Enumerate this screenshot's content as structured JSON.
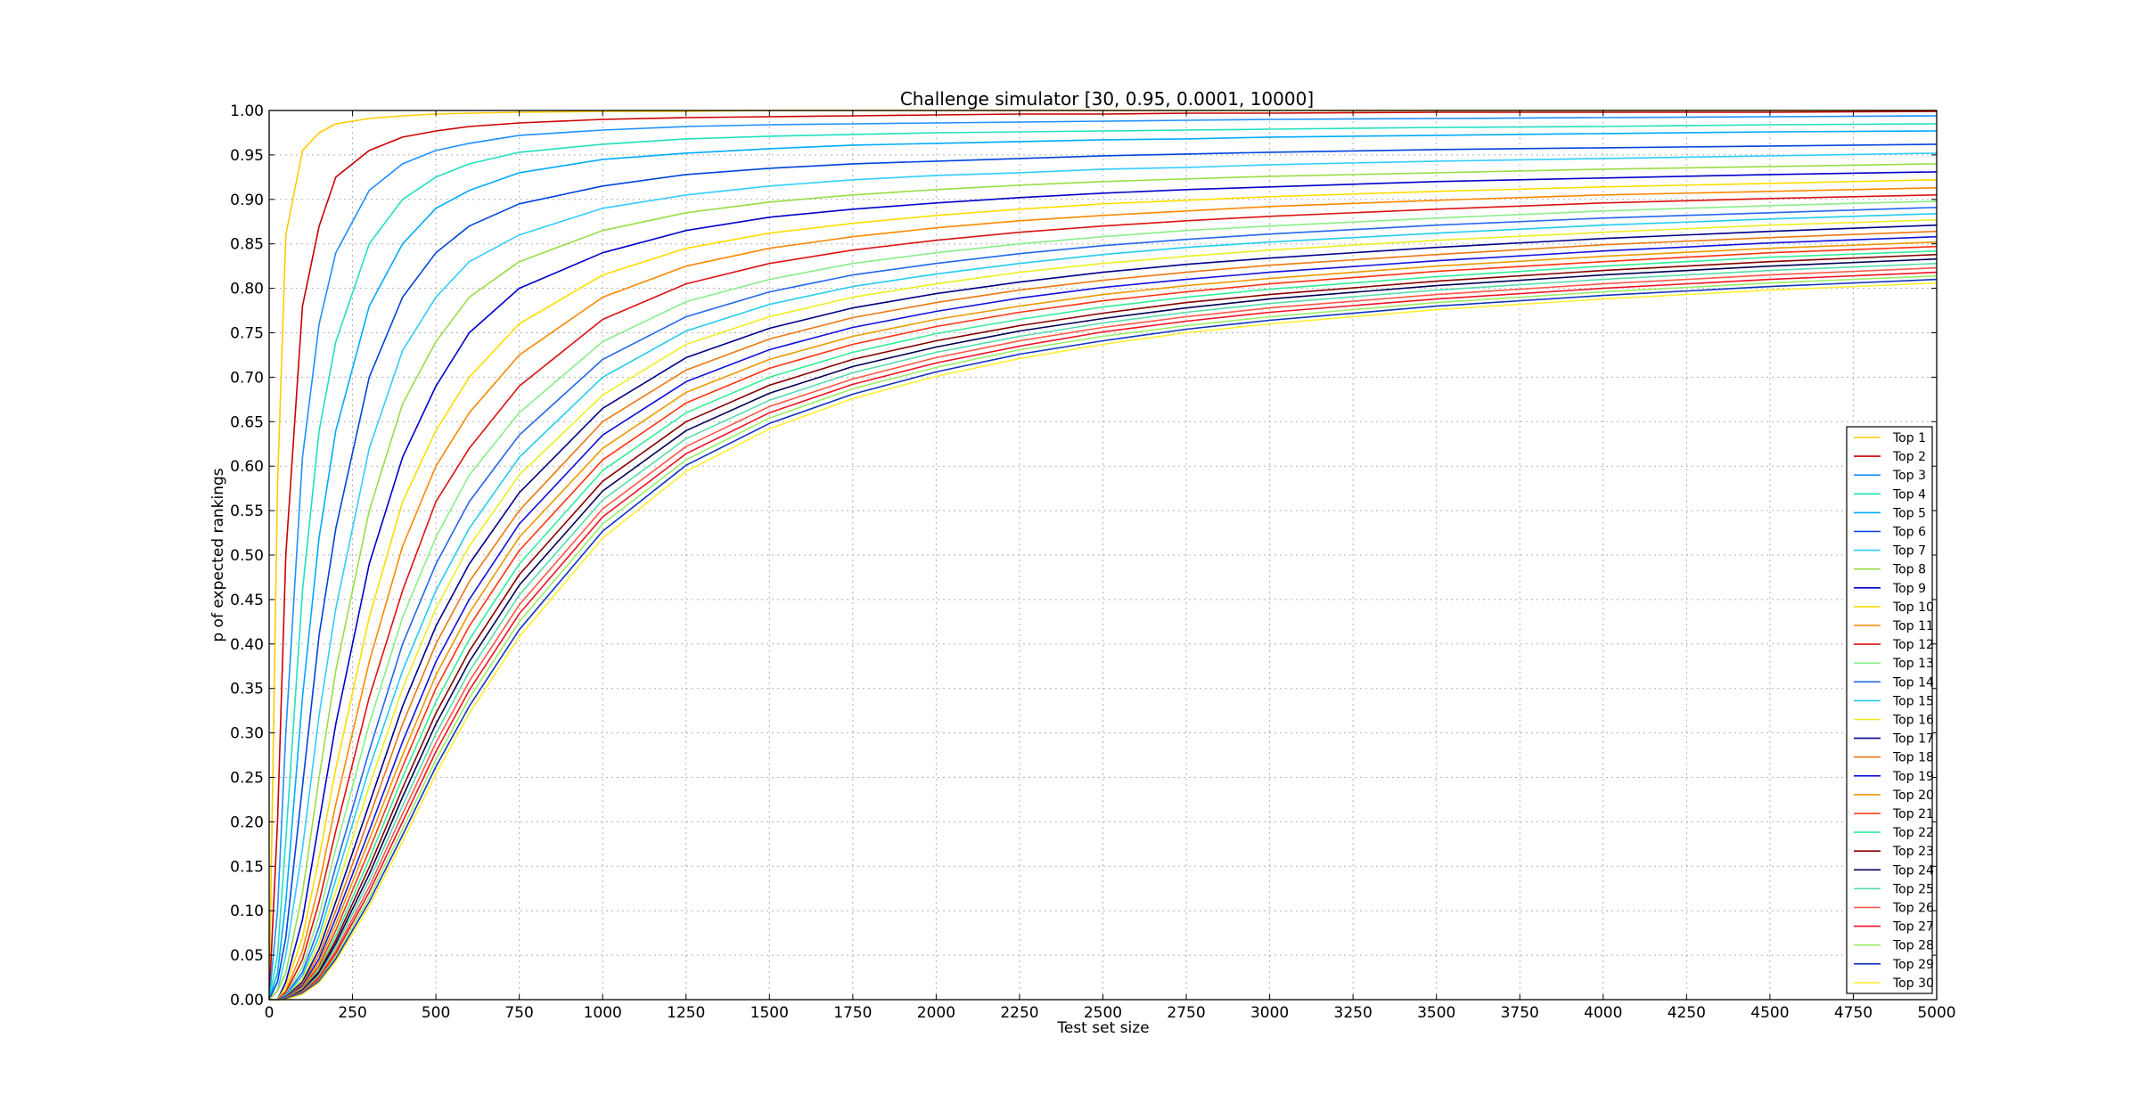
{
  "chart_data": {
    "type": "line",
    "title": "Challenge simulator [30, 0.95, 0.0001, 10000]",
    "xlabel": "Test set size",
    "ylabel": "p of expected rankings",
    "xlim": [
      0,
      5000
    ],
    "ylim": [
      0,
      1
    ],
    "xticks": [
      "0",
      "250",
      "500",
      "750",
      "1000",
      "1250",
      "1500",
      "1750",
      "2000",
      "2250",
      "2500",
      "2750",
      "3000",
      "3250",
      "3500",
      "3750",
      "4000",
      "4250",
      "4500",
      "4750",
      "5000"
    ],
    "yticks": [
      "0.00",
      "0.05",
      "0.10",
      "0.15",
      "0.20",
      "0.25",
      "0.30",
      "0.35",
      "0.40",
      "0.45",
      "0.50",
      "0.55",
      "0.60",
      "0.65",
      "0.70",
      "0.75",
      "0.80",
      "0.85",
      "0.90",
      "0.95",
      "1.00"
    ],
    "grid": true,
    "legend_position": "lower-right",
    "x": [
      0,
      25,
      50,
      100,
      150,
      200,
      300,
      400,
      500,
      600,
      750,
      1000,
      1250,
      1500,
      1750,
      2000,
      2250,
      2500,
      2750,
      3000,
      3500,
      4000,
      4500,
      5000
    ],
    "series": [
      {
        "name": "Top 1",
        "color": "#ffcc00",
        "values": [
          0,
          0.58,
          0.86,
          0.955,
          0.975,
          0.985,
          0.991,
          0.994,
          0.996,
          0.997,
          0.998,
          0.999,
          0.999,
          1,
          1,
          1,
          1,
          1,
          1,
          1,
          1,
          1,
          1,
          1
        ]
      },
      {
        "name": "Top 2",
        "color": "#cc0000",
        "values": [
          0,
          0.2,
          0.5,
          0.78,
          0.87,
          0.925,
          0.955,
          0.97,
          0.977,
          0.982,
          0.986,
          0.99,
          0.992,
          0.993,
          0.994,
          0.995,
          0.996,
          0.996,
          0.997,
          0.997,
          0.998,
          0.998,
          0.998,
          0.999
        ]
      },
      {
        "name": "Top 3",
        "color": "#1e90ff",
        "values": [
          0,
          0.1,
          0.3,
          0.61,
          0.76,
          0.84,
          0.91,
          0.94,
          0.955,
          0.963,
          0.972,
          0.978,
          0.982,
          0.984,
          0.985,
          0.986,
          0.987,
          0.988,
          0.989,
          0.99,
          0.991,
          0.992,
          0.993,
          0.994
        ]
      },
      {
        "name": "Top 4",
        "color": "#20e0c0",
        "values": [
          0,
          0.05,
          0.18,
          0.46,
          0.64,
          0.74,
          0.85,
          0.9,
          0.925,
          0.94,
          0.953,
          0.962,
          0.968,
          0.971,
          0.973,
          0.975,
          0.976,
          0.977,
          0.978,
          0.979,
          0.981,
          0.982,
          0.984,
          0.985
        ]
      },
      {
        "name": "Top 5",
        "color": "#00aaff",
        "values": [
          0,
          0.03,
          0.11,
          0.34,
          0.52,
          0.64,
          0.78,
          0.85,
          0.89,
          0.91,
          0.93,
          0.945,
          0.952,
          0.957,
          0.961,
          0.963,
          0.965,
          0.967,
          0.968,
          0.97,
          0.972,
          0.974,
          0.976,
          0.977
        ]
      },
      {
        "name": "Top 6",
        "color": "#0044dd",
        "values": [
          0,
          0.02,
          0.07,
          0.24,
          0.41,
          0.53,
          0.7,
          0.79,
          0.84,
          0.87,
          0.895,
          0.915,
          0.928,
          0.935,
          0.94,
          0.943,
          0.946,
          0.949,
          0.951,
          0.953,
          0.956,
          0.958,
          0.96,
          0.962
        ]
      },
      {
        "name": "Top 7",
        "color": "#33ccff",
        "values": [
          0,
          0.01,
          0.05,
          0.17,
          0.32,
          0.44,
          0.62,
          0.73,
          0.79,
          0.83,
          0.86,
          0.89,
          0.905,
          0.915,
          0.922,
          0.927,
          0.93,
          0.934,
          0.936,
          0.939,
          0.943,
          0.946,
          0.949,
          0.952
        ]
      },
      {
        "name": "Top 8",
        "color": "#99dd44",
        "values": [
          0,
          0.01,
          0.03,
          0.12,
          0.25,
          0.37,
          0.55,
          0.67,
          0.74,
          0.79,
          0.83,
          0.865,
          0.885,
          0.897,
          0.905,
          0.911,
          0.916,
          0.92,
          0.923,
          0.926,
          0.93,
          0.934,
          0.937,
          0.94
        ]
      },
      {
        "name": "Top 9",
        "color": "#0000cc",
        "values": [
          0,
          0,
          0.02,
          0.09,
          0.2,
          0.31,
          0.49,
          0.61,
          0.69,
          0.75,
          0.8,
          0.84,
          0.865,
          0.88,
          0.889,
          0.896,
          0.902,
          0.907,
          0.911,
          0.914,
          0.92,
          0.924,
          0.928,
          0.931
        ]
      },
      {
        "name": "Top 10",
        "color": "#ffdd00",
        "values": [
          0,
          0,
          0.015,
          0.07,
          0.16,
          0.26,
          0.43,
          0.56,
          0.64,
          0.7,
          0.76,
          0.815,
          0.845,
          0.862,
          0.873,
          0.882,
          0.889,
          0.895,
          0.899,
          0.903,
          0.909,
          0.914,
          0.918,
          0.922
        ]
      },
      {
        "name": "Top 11",
        "color": "#ff8800",
        "values": [
          0,
          0,
          0.01,
          0.055,
          0.13,
          0.22,
          0.38,
          0.51,
          0.6,
          0.66,
          0.725,
          0.79,
          0.825,
          0.845,
          0.858,
          0.868,
          0.876,
          0.882,
          0.887,
          0.892,
          0.899,
          0.905,
          0.909,
          0.913
        ]
      },
      {
        "name": "Top 12",
        "color": "#dd1111",
        "values": [
          0,
          0,
          0.008,
          0.045,
          0.11,
          0.19,
          0.34,
          0.46,
          0.56,
          0.62,
          0.69,
          0.765,
          0.805,
          0.828,
          0.843,
          0.854,
          0.863,
          0.87,
          0.876,
          0.881,
          0.889,
          0.896,
          0.901,
          0.905
        ]
      },
      {
        "name": "Top 13",
        "color": "#88ee88",
        "values": [
          0,
          0,
          0.006,
          0.037,
          0.095,
          0.17,
          0.31,
          0.43,
          0.52,
          0.59,
          0.66,
          0.74,
          0.785,
          0.81,
          0.828,
          0.84,
          0.85,
          0.858,
          0.865,
          0.87,
          0.879,
          0.887,
          0.893,
          0.898
        ]
      },
      {
        "name": "Top 14",
        "color": "#2266ee",
        "values": [
          0,
          0,
          0.005,
          0.031,
          0.082,
          0.15,
          0.28,
          0.4,
          0.49,
          0.56,
          0.635,
          0.72,
          0.768,
          0.796,
          0.815,
          0.828,
          0.839,
          0.848,
          0.855,
          0.861,
          0.871,
          0.879,
          0.885,
          0.891
        ]
      },
      {
        "name": "Top 15",
        "color": "#22ccee",
        "values": [
          0,
          0,
          0.004,
          0.027,
          0.072,
          0.135,
          0.26,
          0.37,
          0.46,
          0.53,
          0.61,
          0.7,
          0.752,
          0.782,
          0.802,
          0.816,
          0.828,
          0.838,
          0.846,
          0.852,
          0.862,
          0.871,
          0.878,
          0.884
        ]
      },
      {
        "name": "Top 16",
        "color": "#eeee22",
        "values": [
          0,
          0,
          0.003,
          0.023,
          0.064,
          0.122,
          0.24,
          0.35,
          0.44,
          0.51,
          0.59,
          0.68,
          0.737,
          0.768,
          0.79,
          0.805,
          0.818,
          0.828,
          0.836,
          0.843,
          0.854,
          0.863,
          0.871,
          0.877
        ]
      },
      {
        "name": "Top 17",
        "color": "#000088",
        "values": [
          0,
          0,
          0.003,
          0.02,
          0.057,
          0.11,
          0.22,
          0.33,
          0.42,
          0.49,
          0.57,
          0.665,
          0.722,
          0.755,
          0.778,
          0.794,
          0.807,
          0.818,
          0.827,
          0.834,
          0.846,
          0.856,
          0.864,
          0.871
        ]
      },
      {
        "name": "Top 18",
        "color": "#ee7711",
        "values": [
          0,
          0,
          0.002,
          0.018,
          0.051,
          0.1,
          0.205,
          0.31,
          0.4,
          0.47,
          0.55,
          0.65,
          0.708,
          0.743,
          0.767,
          0.784,
          0.798,
          0.809,
          0.818,
          0.826,
          0.838,
          0.849,
          0.857,
          0.864
        ]
      },
      {
        "name": "Top 19",
        "color": "#1111dd",
        "values": [
          0,
          0,
          0.002,
          0.016,
          0.046,
          0.092,
          0.19,
          0.29,
          0.38,
          0.45,
          0.535,
          0.635,
          0.695,
          0.731,
          0.756,
          0.774,
          0.789,
          0.801,
          0.81,
          0.818,
          0.831,
          0.842,
          0.851,
          0.858
        ]
      },
      {
        "name": "Top 20",
        "color": "#ee9900",
        "values": [
          0,
          0,
          0.002,
          0.014,
          0.042,
          0.085,
          0.18,
          0.275,
          0.365,
          0.435,
          0.52,
          0.62,
          0.683,
          0.72,
          0.746,
          0.765,
          0.78,
          0.793,
          0.803,
          0.811,
          0.825,
          0.836,
          0.845,
          0.852
        ]
      },
      {
        "name": "Top 21",
        "color": "#ff3311",
        "values": [
          0,
          0,
          0.001,
          0.013,
          0.038,
          0.078,
          0.168,
          0.262,
          0.35,
          0.42,
          0.505,
          0.607,
          0.671,
          0.71,
          0.737,
          0.757,
          0.773,
          0.786,
          0.796,
          0.805,
          0.819,
          0.83,
          0.84,
          0.847
        ]
      },
      {
        "name": "Top 22",
        "color": "#33ee99",
        "values": [
          0,
          0,
          0.001,
          0.012,
          0.035,
          0.072,
          0.158,
          0.25,
          0.335,
          0.405,
          0.49,
          0.595,
          0.66,
          0.7,
          0.728,
          0.749,
          0.765,
          0.779,
          0.79,
          0.799,
          0.813,
          0.825,
          0.835,
          0.842
        ]
      },
      {
        "name": "Top 23",
        "color": "#880000",
        "values": [
          0,
          0,
          0.001,
          0.011,
          0.032,
          0.067,
          0.149,
          0.238,
          0.322,
          0.392,
          0.478,
          0.583,
          0.65,
          0.691,
          0.72,
          0.741,
          0.758,
          0.772,
          0.784,
          0.793,
          0.808,
          0.82,
          0.83,
          0.838
        ]
      },
      {
        "name": "Top 24",
        "color": "#000055",
        "values": [
          0,
          0,
          0.001,
          0.01,
          0.03,
          0.063,
          0.141,
          0.228,
          0.31,
          0.38,
          0.466,
          0.572,
          0.64,
          0.682,
          0.712,
          0.734,
          0.752,
          0.766,
          0.778,
          0.788,
          0.803,
          0.815,
          0.825,
          0.833
        ]
      },
      {
        "name": "Top 25",
        "color": "#55ddaa",
        "values": [
          0,
          0,
          0.001,
          0.009,
          0.028,
          0.059,
          0.134,
          0.218,
          0.299,
          0.369,
          0.455,
          0.562,
          0.631,
          0.674,
          0.705,
          0.728,
          0.746,
          0.761,
          0.773,
          0.783,
          0.798,
          0.81,
          0.82,
          0.828
        ]
      },
      {
        "name": "Top 26",
        "color": "#ff5544",
        "values": [
          0,
          0,
          0.001,
          0.008,
          0.026,
          0.055,
          0.127,
          0.209,
          0.289,
          0.358,
          0.444,
          0.552,
          0.622,
          0.667,
          0.698,
          0.722,
          0.741,
          0.756,
          0.768,
          0.778,
          0.793,
          0.805,
          0.815,
          0.823
        ]
      },
      {
        "name": "Top 27",
        "color": "#ee1122",
        "values": [
          0,
          0,
          0.001,
          0.008,
          0.024,
          0.052,
          0.121,
          0.2,
          0.279,
          0.348,
          0.434,
          0.543,
          0.614,
          0.66,
          0.692,
          0.716,
          0.735,
          0.751,
          0.763,
          0.773,
          0.788,
          0.8,
          0.81,
          0.818
        ]
      },
      {
        "name": "Top 28",
        "color": "#99ee66",
        "values": [
          0,
          0,
          0.001,
          0.007,
          0.022,
          0.049,
          0.115,
          0.192,
          0.27,
          0.339,
          0.425,
          0.535,
          0.607,
          0.654,
          0.687,
          0.711,
          0.731,
          0.746,
          0.758,
          0.768,
          0.784,
          0.796,
          0.806,
          0.814
        ]
      },
      {
        "name": "Top 29",
        "color": "#1133bb",
        "values": [
          0,
          0,
          0.001,
          0.007,
          0.021,
          0.046,
          0.11,
          0.185,
          0.262,
          0.33,
          0.416,
          0.527,
          0.601,
          0.648,
          0.681,
          0.706,
          0.726,
          0.741,
          0.754,
          0.764,
          0.78,
          0.792,
          0.802,
          0.81
        ]
      },
      {
        "name": "Top 30",
        "color": "#ffee33",
        "values": [
          0,
          0,
          0,
          0.006,
          0.019,
          0.043,
          0.105,
          0.178,
          0.254,
          0.322,
          0.408,
          0.519,
          0.594,
          0.642,
          0.676,
          0.701,
          0.721,
          0.737,
          0.75,
          0.76,
          0.776,
          0.788,
          0.798,
          0.806
        ]
      }
    ]
  }
}
